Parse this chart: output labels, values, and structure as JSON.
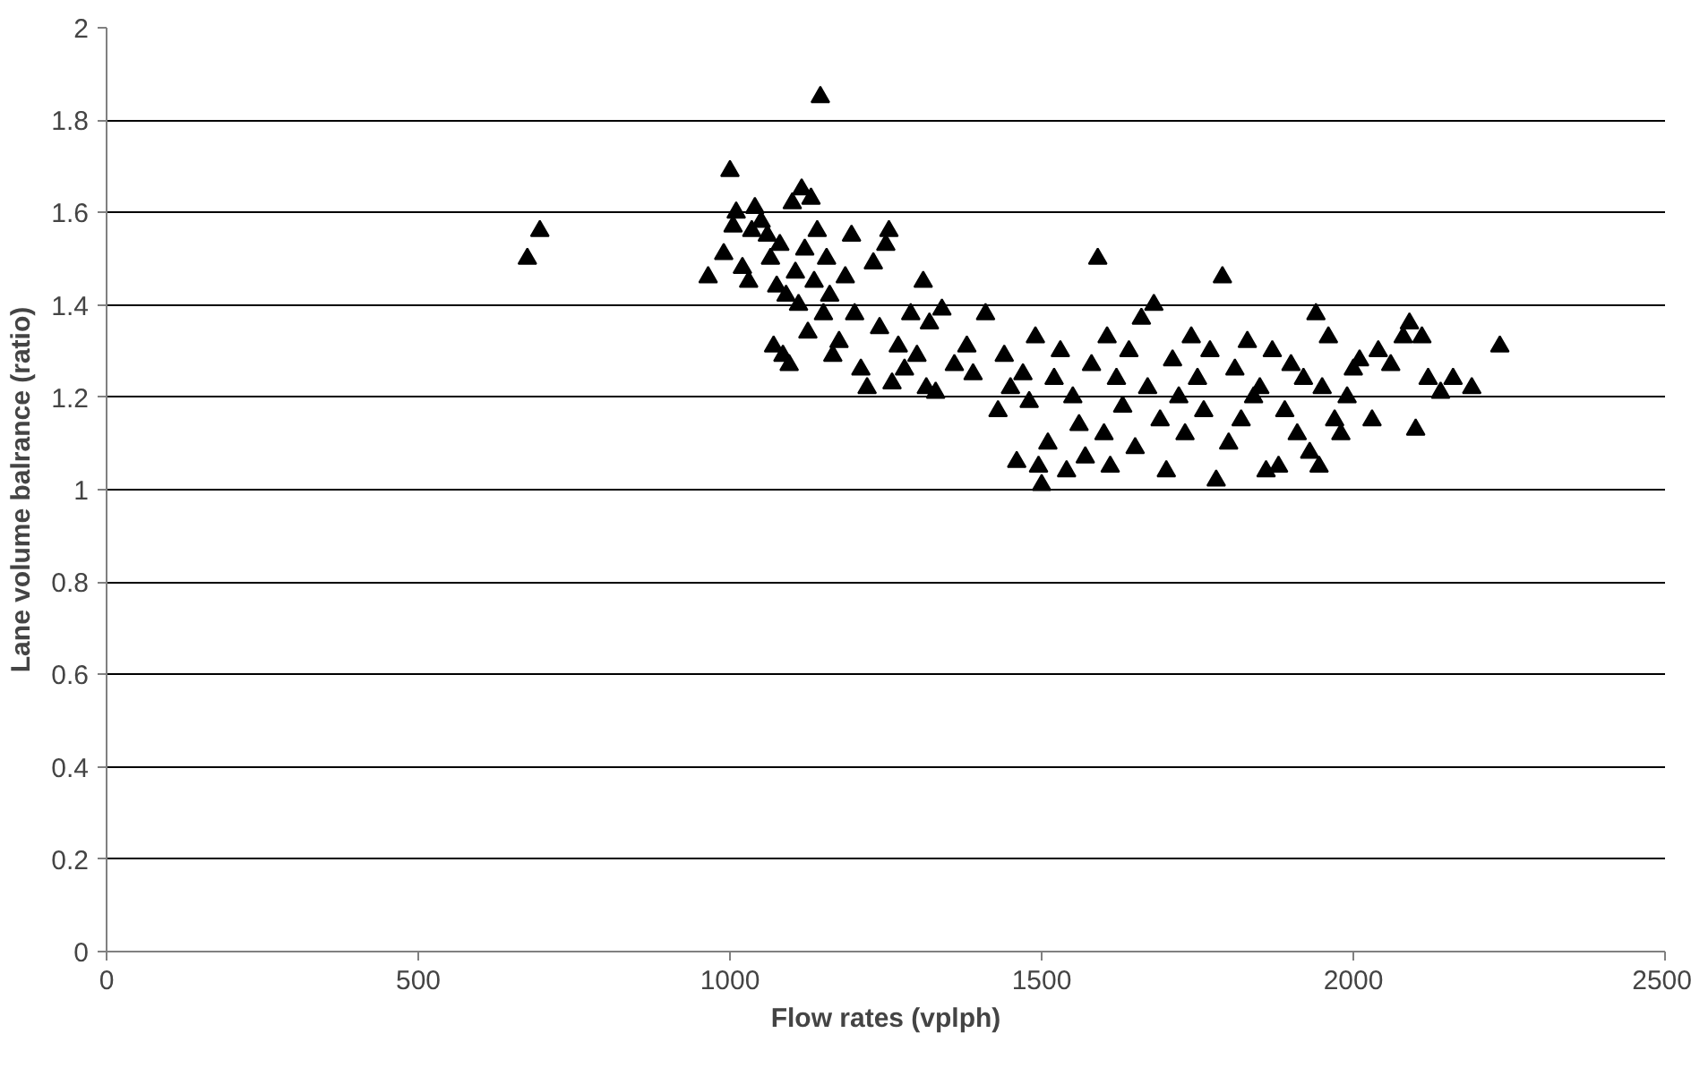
{
  "chart_data": {
    "type": "scatter",
    "xlabel": "Flow rates (vplph)",
    "ylabel": "Lane volume balrance (ratio)",
    "xlim": [
      0,
      2500
    ],
    "xticks": [
      0,
      500,
      1000,
      1500,
      2000,
      2500
    ],
    "ylim": [
      0,
      2
    ],
    "yticks": [
      0,
      {
        "value": 0.2,
        "label": "0.2"
      },
      {
        "value": 0.4,
        "label": "0.4"
      },
      {
        "value": 0.6,
        "label": "0.6"
      },
      {
        "value": 0.8,
        "label": "0.8"
      },
      1,
      {
        "value": 1.2,
        "label": "1.2"
      },
      {
        "value": 1.4,
        "label": "1.4"
      },
      {
        "value": 1.6,
        "label": "1.6"
      },
      {
        "value": 1.8,
        "label": "1.8"
      },
      2
    ],
    "grid": "y",
    "marker": "triangle",
    "series": [
      {
        "color": "#000000",
        "x": [
          675,
          695,
          965,
          990,
          1000,
          1005,
          1010,
          1020,
          1030,
          1035,
          1040,
          1050,
          1060,
          1065,
          1070,
          1075,
          1080,
          1085,
          1090,
          1095,
          1100,
          1105,
          1110,
          1115,
          1120,
          1125,
          1130,
          1135,
          1140,
          1145,
          1150,
          1155,
          1160,
          1165,
          1175,
          1185,
          1195,
          1200,
          1210,
          1220,
          1230,
          1240,
          1250,
          1255,
          1260,
          1270,
          1280,
          1290,
          1300,
          1310,
          1315,
          1320,
          1330,
          1340,
          1360,
          1380,
          1390,
          1410,
          1430,
          1440,
          1450,
          1460,
          1470,
          1480,
          1490,
          1495,
          1500,
          1510,
          1520,
          1530,
          1540,
          1550,
          1560,
          1570,
          1580,
          1590,
          1600,
          1605,
          1610,
          1620,
          1630,
          1640,
          1650,
          1660,
          1670,
          1680,
          1690,
          1700,
          1710,
          1720,
          1730,
          1740,
          1750,
          1760,
          1770,
          1780,
          1790,
          1800,
          1810,
          1820,
          1830,
          1840,
          1850,
          1860,
          1870,
          1880,
          1890,
          1900,
          1910,
          1920,
          1930,
          1940,
          1945,
          1950,
          1960,
          1970,
          1980,
          1990,
          2000,
          2010,
          2030,
          2040,
          2060,
          2080,
          2090,
          2100,
          2110,
          2120,
          2140,
          2160,
          2190,
          2235
        ],
        "values": [
          1.5,
          1.56,
          1.46,
          1.51,
          1.69,
          1.57,
          1.6,
          1.48,
          1.45,
          1.56,
          1.61,
          1.58,
          1.55,
          1.5,
          1.31,
          1.44,
          1.53,
          1.29,
          1.42,
          1.27,
          1.62,
          1.47,
          1.4,
          1.65,
          1.52,
          1.34,
          1.63,
          1.45,
          1.56,
          1.85,
          1.38,
          1.5,
          1.42,
          1.29,
          1.32,
          1.46,
          1.55,
          1.38,
          1.26,
          1.22,
          1.49,
          1.35,
          1.53,
          1.56,
          1.23,
          1.31,
          1.26,
          1.38,
          1.29,
          1.45,
          1.22,
          1.36,
          1.21,
          1.39,
          1.27,
          1.31,
          1.25,
          1.38,
          1.17,
          1.29,
          1.22,
          1.06,
          1.25,
          1.19,
          1.33,
          1.05,
          1.01,
          1.1,
          1.24,
          1.3,
          1.04,
          1.2,
          1.14,
          1.07,
          1.27,
          1.5,
          1.12,
          1.33,
          1.05,
          1.24,
          1.18,
          1.3,
          1.09,
          1.37,
          1.22,
          1.4,
          1.15,
          1.04,
          1.28,
          1.2,
          1.12,
          1.33,
          1.24,
          1.17,
          1.3,
          1.02,
          1.46,
          1.1,
          1.26,
          1.15,
          1.32,
          1.2,
          1.22,
          1.04,
          1.3,
          1.05,
          1.17,
          1.27,
          1.12,
          1.24,
          1.08,
          1.38,
          1.05,
          1.22,
          1.33,
          1.15,
          1.12,
          1.2,
          1.26,
          1.28,
          1.15,
          1.3,
          1.27,
          1.33,
          1.36,
          1.13,
          1.33,
          1.24,
          1.21,
          1.24,
          1.22,
          1.31
        ]
      }
    ]
  }
}
